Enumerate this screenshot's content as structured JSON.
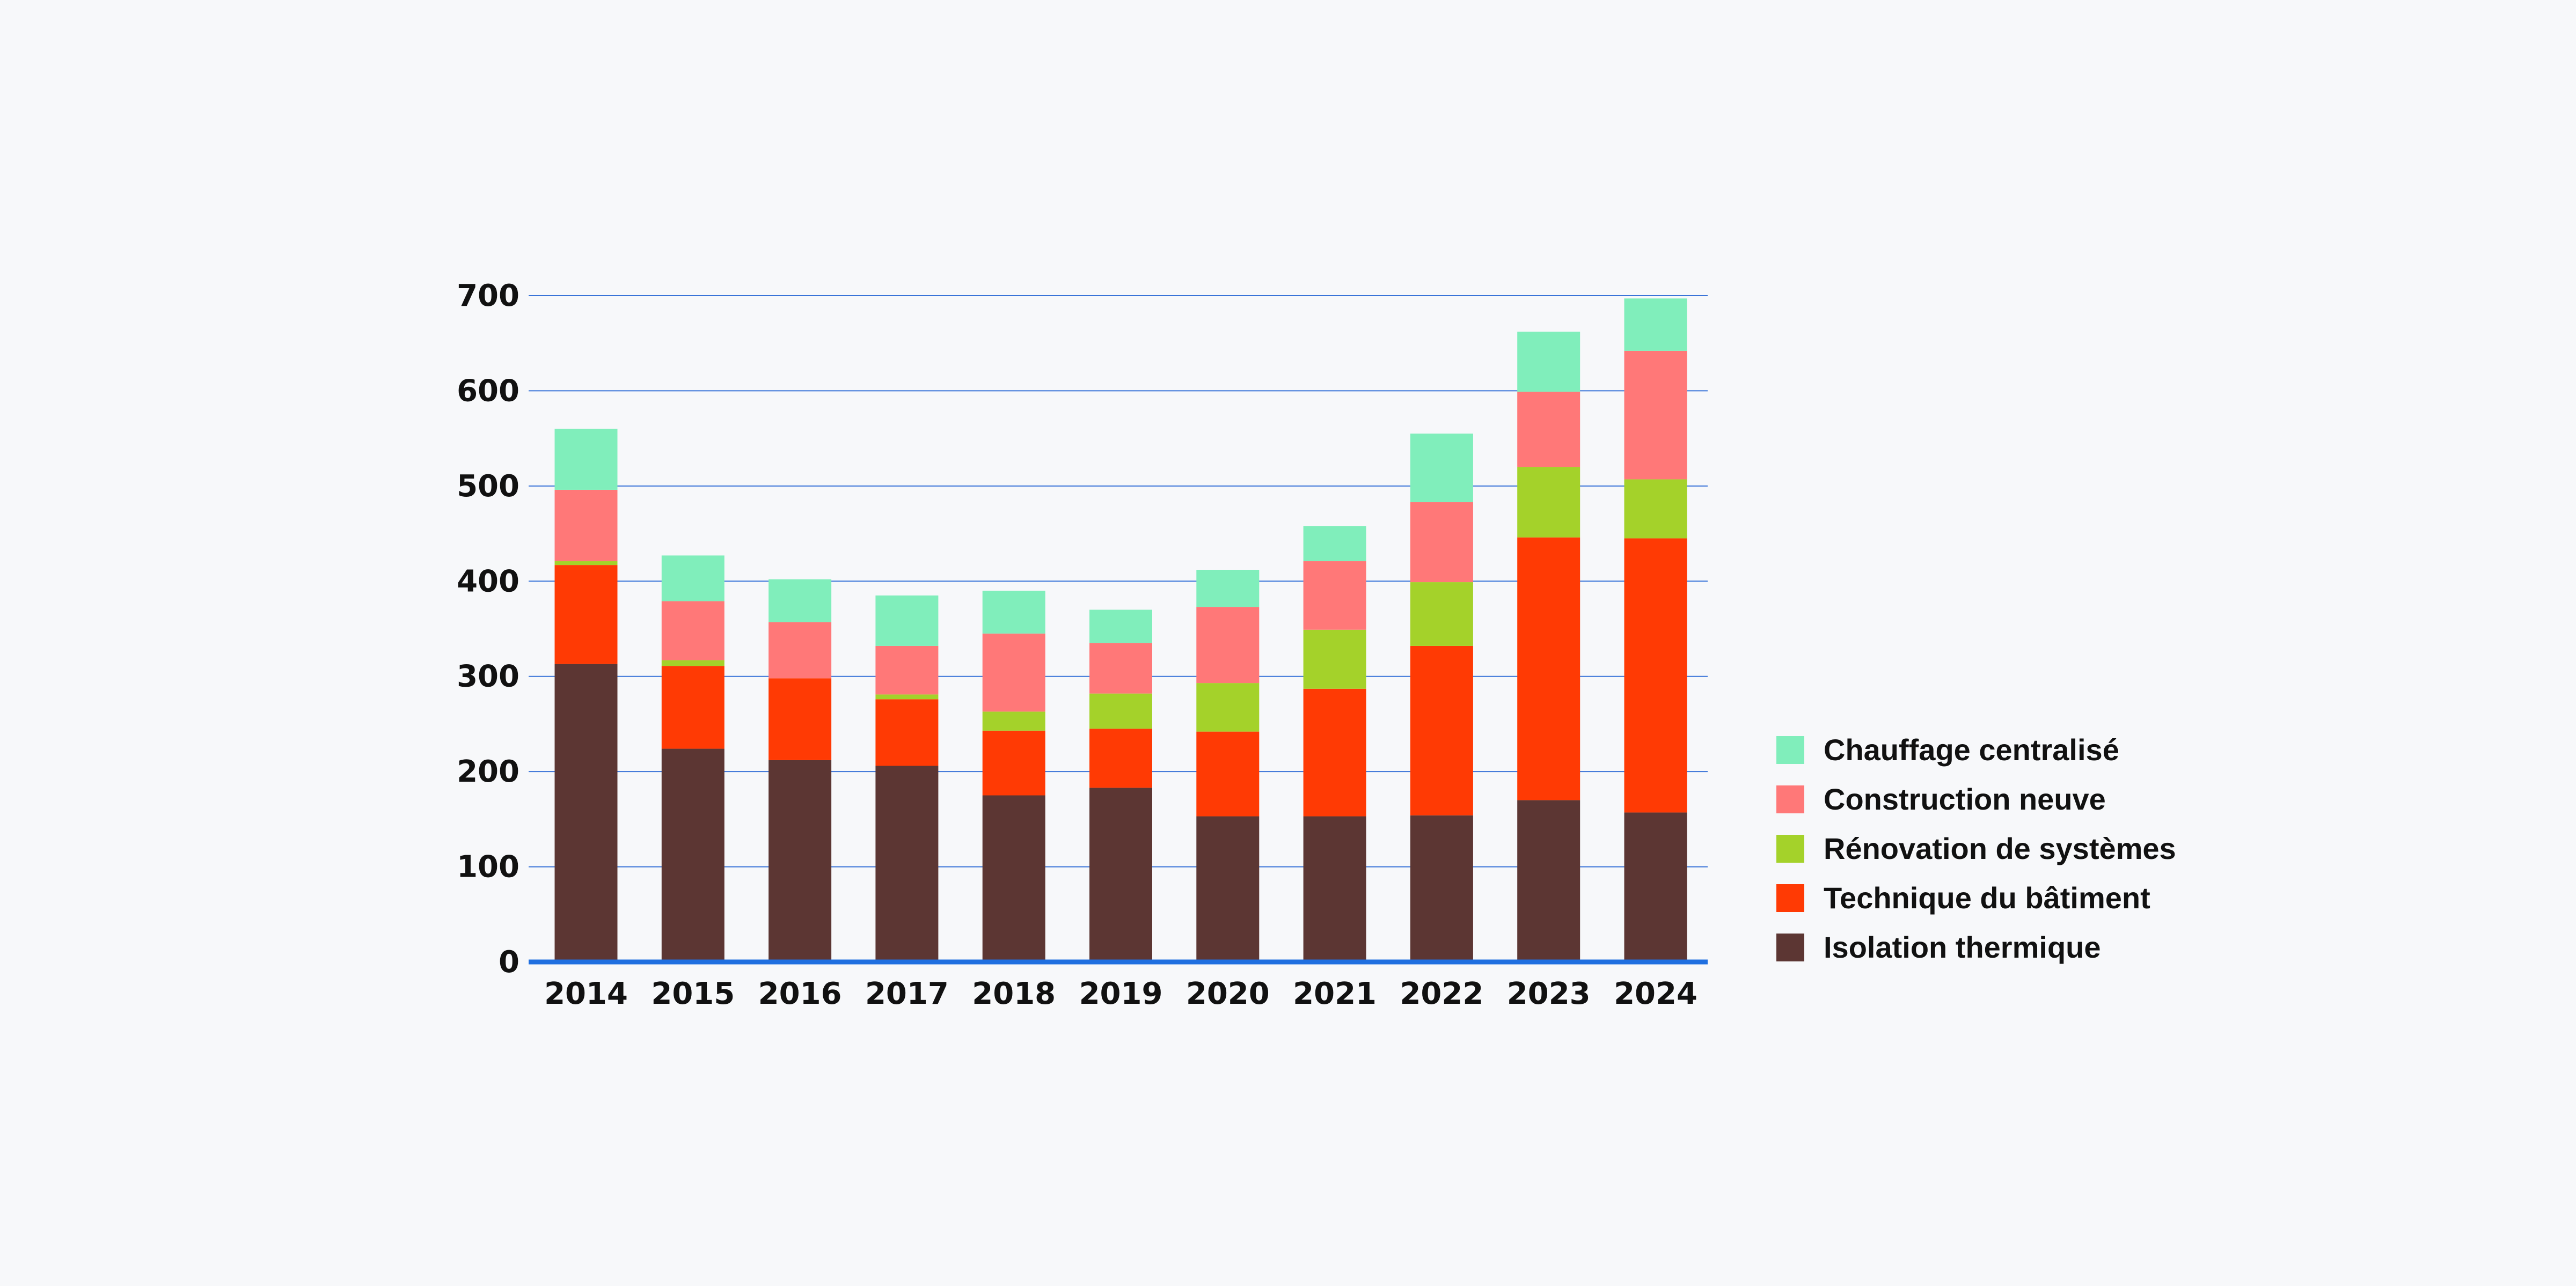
{
  "chart_data": {
    "type": "bar",
    "stacked": true,
    "title": "",
    "xlabel": "",
    "ylabel": "",
    "ylim": [
      0,
      700
    ],
    "yticks": [
      0,
      100,
      200,
      300,
      400,
      500,
      600,
      700
    ],
    "ytick_labels": [
      "0",
      "100",
      "200",
      "300",
      "400",
      "500",
      "600",
      "700"
    ],
    "grid": true,
    "legend_position": "right",
    "categories": [
      "2014",
      "2015",
      "2016",
      "2017",
      "2018",
      "2019",
      "2020",
      "2021",
      "2022",
      "2023",
      "2024"
    ],
    "series": [
      {
        "name": "Isolation thermique",
        "color": "#5c3633",
        "values": [
          313,
          224,
          212,
          206,
          175,
          183,
          153,
          153,
          154,
          170,
          157
        ]
      },
      {
        "name": "Technique du bâtiment",
        "color": "#ff3a04",
        "values": [
          104,
          87,
          86,
          70,
          68,
          62,
          89,
          134,
          178,
          276,
          288
        ]
      },
      {
        "name": "Rénovation de systèmes",
        "color": "#a4d22a",
        "values": [
          4,
          6,
          0,
          5,
          20,
          37,
          51,
          62,
          67,
          74,
          62
        ]
      },
      {
        "name": "Construction neuve",
        "color": "#ff7878",
        "values": [
          75,
          62,
          59,
          51,
          82,
          53,
          80,
          72,
          84,
          79,
          135
        ]
      },
      {
        "name": "Chauffage centralisé",
        "color": "#80eebb",
        "values": [
          64,
          48,
          45,
          53,
          45,
          35,
          39,
          37,
          72,
          63,
          55
        ]
      }
    ]
  }
}
